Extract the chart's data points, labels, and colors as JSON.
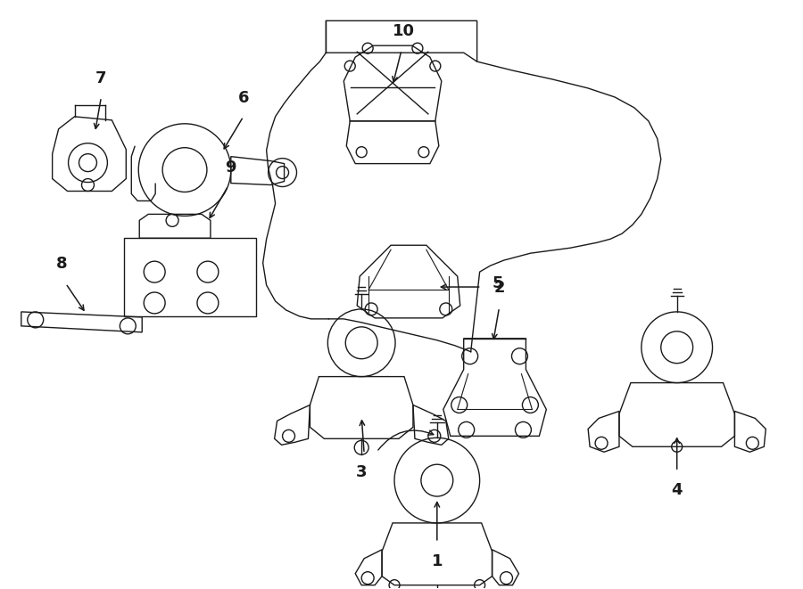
{
  "bg_color": "#ffffff",
  "line_color": "#1a1a1a",
  "line_width": 1.0,
  "fig_width": 9.0,
  "fig_height": 6.61,
  "dpi": 100,
  "label_fontsize": 13
}
